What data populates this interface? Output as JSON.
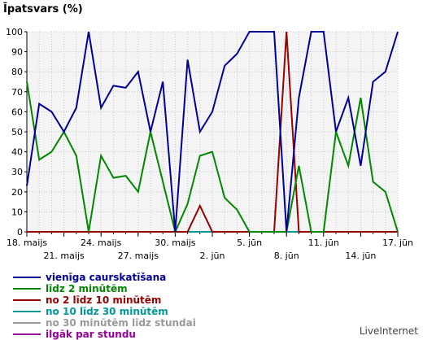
{
  "chart_data": {
    "type": "line",
    "ylabel": "Īpatsvars (%)",
    "ylim": [
      0,
      100
    ],
    "yticks": [
      0,
      10,
      20,
      30,
      40,
      50,
      60,
      70,
      80,
      90,
      100
    ],
    "grid": true,
    "x_labels_row1": [
      "18. maijs",
      "24. maijs",
      "30. maijs",
      "5. jūn",
      "11. jūn",
      "17. jūn"
    ],
    "x_labels_row2": [
      "21. maijs",
      "27. maijs",
      "2. jūn",
      "8. jūn",
      "14. jūn"
    ],
    "x": [
      "18. maijs",
      "19. maijs",
      "20. maijs",
      "21. maijs",
      "22. maijs",
      "23. maijs",
      "24. maijs",
      "25. maijs",
      "26. maijs",
      "27. maijs",
      "28. maijs",
      "29. maijs",
      "30. maijs",
      "31. maijs",
      "1. jūn",
      "2. jūn",
      "3. jūn",
      "4. jūn",
      "5. jūn",
      "6. jūn",
      "7. jūn",
      "8. jūn",
      "9. jūn",
      "10. jūn",
      "11. jūn",
      "12. jūn",
      "13. jūn",
      "14. jūn",
      "15. jūn",
      "16. jūn",
      "17. jūn"
    ],
    "series": [
      {
        "name": "vienīga caurskatīšana",
        "color": "#000099",
        "values": [
          23,
          64,
          60,
          50,
          62,
          100,
          62,
          73,
          72,
          80,
          50,
          75,
          0,
          86,
          50,
          60,
          83,
          89,
          100,
          100,
          100,
          0,
          67,
          100,
          100,
          50,
          67,
          33,
          75,
          80,
          100
        ]
      },
      {
        "name": "līdz 2 minūtēm",
        "color": "#008800",
        "values": [
          75,
          36,
          40,
          50,
          38,
          0,
          38,
          27,
          28,
          20,
          50,
          25,
          0,
          14,
          38,
          40,
          17,
          11,
          0,
          0,
          0,
          0,
          33,
          0,
          0,
          50,
          33,
          67,
          25,
          20,
          0
        ]
      },
      {
        "name": "no 2 līdz 10 minūtēm",
        "color": "#990000",
        "values": [
          0,
          0,
          0,
          0,
          0,
          0,
          0,
          0,
          0,
          0,
          0,
          0,
          0,
          0,
          13,
          0,
          0,
          0,
          0,
          0,
          0,
          100,
          0,
          0,
          0,
          0,
          0,
          0,
          0,
          0,
          0
        ]
      },
      {
        "name": "no 10 līdz 30 minūtēm",
        "color": "#009999",
        "values": [
          0,
          0,
          0,
          0,
          0,
          0,
          0,
          0,
          0,
          0,
          0,
          0,
          0,
          0,
          0,
          0,
          0,
          0,
          0,
          0,
          0,
          0,
          0,
          0,
          0,
          0,
          0,
          0,
          0,
          0,
          0
        ]
      },
      {
        "name": "no 30 minūtēm līdz stundai",
        "color": "#999999",
        "values": [
          0,
          0,
          0,
          0,
          0,
          0,
          0,
          0,
          0,
          0,
          0,
          0,
          0,
          0,
          0,
          0,
          0,
          0,
          0,
          0,
          0,
          0,
          0,
          0,
          0,
          0,
          0,
          0,
          0,
          0,
          0
        ]
      },
      {
        "name": "ilgāk par stundu",
        "color": "#990099",
        "values": [
          0,
          0,
          0,
          0,
          0,
          0,
          0,
          0,
          0,
          0,
          0,
          0,
          0,
          0,
          0,
          0,
          0,
          0,
          0,
          0,
          0,
          0,
          0,
          0,
          0,
          0,
          0,
          0,
          0,
          0,
          0
        ]
      }
    ]
  },
  "watermark": "LiveInternet"
}
